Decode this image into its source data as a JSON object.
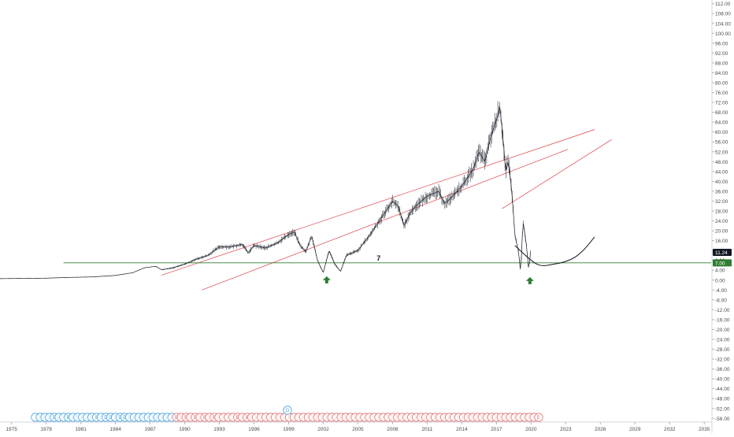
{
  "chart_data": {
    "type": "line",
    "title": "",
    "xlabel": "",
    "ylabel": "",
    "x_range": [
      1974.0,
      2035.6
    ],
    "ylim": [
      -57.5,
      113.5
    ],
    "y_ticks": [
      112,
      108,
      104,
      100,
      96,
      92,
      88,
      84,
      80,
      76,
      72,
      68,
      64,
      60,
      56,
      52,
      48,
      44,
      40,
      36,
      32,
      28,
      24,
      20,
      16,
      12,
      8,
      4,
      0,
      -4,
      -8,
      -12,
      -16,
      -20,
      -24,
      -28,
      -32,
      -36,
      -40,
      -44,
      -48,
      -52,
      -56
    ],
    "y_tick_labels": [
      "112.00",
      "108.00",
      "104.00",
      "100.00",
      "96.00",
      "92.00",
      "88.00",
      "84.00",
      "80.00",
      "76.00",
      "72.00",
      "68.00",
      "64.00",
      "60.00",
      "56.00",
      "52.00",
      "48.00",
      "44.00",
      "40.00",
      "36.00",
      "32.00",
      "28.00",
      "24.00",
      "20.00",
      "16.00",
      "12.00",
      "8.00",
      "4.00",
      "0.00",
      "-4.00",
      "-8.00",
      "-12.00",
      "-16.00",
      "-20.00",
      "-24.00",
      "-28.00",
      "-32.00",
      "-36.00",
      "-40.00",
      "-44.00",
      "-48.00",
      "-52.00",
      "-56.00"
    ],
    "x_ticks": [
      1975,
      1978,
      1981,
      1984,
      1987,
      1990,
      1993,
      1996,
      1999,
      2002,
      2005,
      2008,
      2011,
      2014,
      2017,
      2020,
      2023,
      2026,
      2029,
      2032,
      2035
    ],
    "x_tick_labels": [
      "1975",
      "1978",
      "1981",
      "1984",
      "1987",
      "1990",
      "1993",
      "1996",
      "1999",
      "2002",
      "2005",
      "2008",
      "2011",
      "2014",
      "2017",
      "2020",
      "2023",
      "2026",
      "2029",
      "2032",
      "2035"
    ],
    "series": [
      {
        "price": [
          [
            1974.0,
            0.6
          ],
          [
            1976.0,
            0.7
          ],
          [
            1978.0,
            0.8
          ],
          [
            1980.0,
            1.1
          ],
          [
            1982.0,
            1.3
          ],
          [
            1984.0,
            1.9
          ],
          [
            1985.5,
            3.0
          ],
          [
            1986.5,
            5.0
          ],
          [
            1987.5,
            5.6
          ],
          [
            1988.0,
            4.2
          ],
          [
            1989.0,
            5.0
          ],
          [
            1990.0,
            6.5
          ],
          [
            1991.0,
            8.5
          ],
          [
            1992.0,
            10.0
          ],
          [
            1993.0,
            13.5
          ],
          [
            1994.0,
            13.5
          ],
          [
            1995.0,
            14.5
          ],
          [
            1995.5,
            11.0
          ],
          [
            1996.0,
            14.0
          ],
          [
            1997.0,
            13.0
          ],
          [
            1998.0,
            15.0
          ],
          [
            1999.0,
            18.5
          ],
          [
            1999.5,
            19.5
          ],
          [
            2000.0,
            14.0
          ],
          [
            2000.5,
            11.5
          ],
          [
            2001.0,
            18.0
          ],
          [
            2001.5,
            8.0
          ],
          [
            2002.0,
            3.0
          ],
          [
            2002.5,
            12.0
          ],
          [
            2003.0,
            6.5
          ],
          [
            2003.5,
            3.5
          ],
          [
            2004.0,
            10.0
          ],
          [
            2005.0,
            12.0
          ],
          [
            2006.0,
            18.0
          ],
          [
            2007.0,
            25.0
          ],
          [
            2008.0,
            32.0
          ],
          [
            2008.5,
            30.0
          ],
          [
            2009.0,
            22.0
          ],
          [
            2009.5,
            27.0
          ],
          [
            2010.0,
            30.0
          ],
          [
            2011.0,
            34.0
          ],
          [
            2012.0,
            36.0
          ],
          [
            2012.5,
            31.0
          ],
          [
            2013.0,
            33.0
          ],
          [
            2014.0,
            38.0
          ],
          [
            2015.0,
            45.0
          ],
          [
            2015.5,
            52.0
          ],
          [
            2016.0,
            48.0
          ],
          [
            2016.5,
            58.0
          ],
          [
            2017.0,
            65.0
          ],
          [
            2017.3,
            70.0
          ],
          [
            2017.6,
            56.0
          ],
          [
            2017.8,
            44.0
          ],
          [
            2018.0,
            48.0
          ],
          [
            2018.2,
            42.0
          ],
          [
            2018.4,
            32.0
          ],
          [
            2018.6,
            18.0
          ],
          [
            2018.9,
            12.0
          ],
          [
            2019.1,
            3.0
          ],
          [
            2019.3,
            24.0
          ],
          [
            2019.6,
            14.0
          ],
          [
            2019.8,
            4.0
          ],
          [
            2019.95,
            11.24
          ]
        ],
        "swing_low_1": [
          2002.3,
          2.5
        ],
        "swing_low_2": [
          2019.9,
          2.2
        ]
      }
    ],
    "channel_upper": [
      [
        1988.0,
        2.0
      ],
      [
        2025.5,
        61.0
      ]
    ],
    "channel_lower": [
      [
        1991.5,
        -4.0
      ],
      [
        2023.2,
        53.0
      ]
    ],
    "trend_line": [
      [
        2017.5,
        29.0
      ],
      [
        2027.0,
        57.0
      ]
    ],
    "horizontal_level": 7,
    "horizontal_level_label": "7",
    "horizontal_line_range": [
      1979.5,
      2035.6
    ],
    "curve_bowl": [
      [
        2018.6,
        14.0
      ],
      [
        2020.5,
        6.5
      ],
      [
        2022.0,
        6.5
      ],
      [
        2023.5,
        8.5
      ],
      [
        2024.5,
        12.0
      ],
      [
        2025.5,
        17.5
      ]
    ],
    "price_tags": [
      {
        "value": 11.24,
        "label": "11.24"
      },
      {
        "value": 7.0,
        "label": "7.00"
      }
    ],
    "event_markers": {
      "markers": [
        {
          "label": "",
          "kind": "dividend"
        },
        {
          "label": "",
          "kind": "dividend"
        },
        {
          "label": "",
          "kind": "dividend"
        },
        {
          "label": "",
          "kind": "dividend"
        },
        {
          "label": "D",
          "kind": "dividend"
        },
        {
          "label": "",
          "kind": "dividend"
        },
        {
          "label": "",
          "kind": "dividend"
        },
        {
          "label": "E",
          "kind": "dividend"
        },
        {
          "label": "",
          "kind": "dividend"
        },
        {
          "label": "",
          "kind": "dividend"
        },
        {
          "label": "",
          "kind": "dividend"
        },
        {
          "label": "",
          "kind": "dividend"
        },
        {
          "label": "",
          "kind": "dividend"
        },
        {
          "label": "S",
          "kind": "dividend"
        },
        {
          "label": "",
          "kind": "dividend"
        },
        {
          "label": "D",
          "kind": "dividend"
        },
        {
          "label": "D",
          "kind": "dividend"
        },
        {
          "label": "",
          "kind": "dividend"
        },
        {
          "label": "D",
          "kind": "dividend"
        },
        {
          "label": "D",
          "kind": "dividend"
        },
        {
          "label": "",
          "kind": "dividend"
        },
        {
          "label": "",
          "kind": "dividend"
        },
        {
          "label": "",
          "kind": "dividend"
        },
        {
          "label": "",
          "kind": "dividend"
        },
        {
          "label": "",
          "kind": "dividend"
        },
        {
          "label": "",
          "kind": "dividend"
        },
        {
          "label": "",
          "kind": "dividend"
        },
        {
          "label": "",
          "kind": "dividend"
        },
        {
          "label": "",
          "kind": "dividend"
        },
        {
          "label": "",
          "kind": "dividend"
        },
        {
          "label": "E",
          "kind": "earnings"
        },
        {
          "label": "",
          "kind": "earnings"
        },
        {
          "label": "E",
          "kind": "earnings"
        },
        {
          "label": "",
          "kind": "earnings"
        },
        {
          "label": "E",
          "kind": "earnings"
        },
        {
          "label": "",
          "kind": "earnings"
        },
        {
          "label": "E",
          "kind": "earnings"
        },
        {
          "label": "",
          "kind": "earnings"
        },
        {
          "label": "E",
          "kind": "earnings"
        },
        {
          "label": "",
          "kind": "earnings"
        },
        {
          "label": "",
          "kind": "earnings"
        },
        {
          "label": "",
          "kind": "earnings"
        },
        {
          "label": "",
          "kind": "earnings"
        },
        {
          "label": "E",
          "kind": "earnings"
        },
        {
          "label": "",
          "kind": "earnings"
        },
        {
          "label": "E",
          "kind": "earnings"
        },
        {
          "label": "",
          "kind": "earnings"
        },
        {
          "label": "",
          "kind": "earnings"
        },
        {
          "label": "",
          "kind": "earnings"
        },
        {
          "label": "",
          "kind": "earnings"
        },
        {
          "label": "",
          "kind": "earnings"
        },
        {
          "label": "",
          "kind": "earnings"
        },
        {
          "label": "",
          "kind": "earnings"
        },
        {
          "label": "",
          "kind": "earnings"
        },
        {
          "label": "",
          "kind": "earnings"
        },
        {
          "label": "",
          "kind": "earnings"
        },
        {
          "label": "",
          "kind": "earnings"
        },
        {
          "label": "",
          "kind": "earnings"
        },
        {
          "label": "",
          "kind": "earnings"
        },
        {
          "label": "",
          "kind": "earnings"
        },
        {
          "label": "",
          "kind": "earnings"
        },
        {
          "label": "",
          "kind": "earnings"
        },
        {
          "label": "",
          "kind": "earnings"
        },
        {
          "label": "",
          "kind": "earnings"
        },
        {
          "label": "",
          "kind": "earnings"
        },
        {
          "label": "",
          "kind": "earnings"
        },
        {
          "label": "",
          "kind": "earnings"
        },
        {
          "label": "",
          "kind": "earnings"
        },
        {
          "label": "",
          "kind": "earnings"
        },
        {
          "label": "",
          "kind": "earnings"
        },
        {
          "label": "",
          "kind": "earnings"
        },
        {
          "label": "",
          "kind": "earnings"
        },
        {
          "label": "",
          "kind": "earnings"
        },
        {
          "label": "",
          "kind": "earnings"
        },
        {
          "label": "",
          "kind": "earnings"
        },
        {
          "label": "",
          "kind": "earnings"
        },
        {
          "label": "",
          "kind": "earnings"
        },
        {
          "label": "",
          "kind": "earnings"
        },
        {
          "label": "",
          "kind": "earnings"
        },
        {
          "label": "",
          "kind": "earnings"
        },
        {
          "label": "",
          "kind": "earnings"
        },
        {
          "label": "",
          "kind": "earnings"
        },
        {
          "label": "",
          "kind": "earnings"
        },
        {
          "label": "",
          "kind": "earnings"
        },
        {
          "label": "",
          "kind": "earnings"
        },
        {
          "label": "",
          "kind": "earnings"
        },
        {
          "label": "",
          "kind": "earnings"
        },
        {
          "label": "",
          "kind": "earnings"
        },
        {
          "label": "",
          "kind": "earnings"
        },
        {
          "label": "",
          "kind": "earnings"
        },
        {
          "label": "",
          "kind": "earnings"
        },
        {
          "label": "",
          "kind": "earnings"
        },
        {
          "label": "",
          "kind": "earnings"
        },
        {
          "label": "",
          "kind": "earnings"
        },
        {
          "label": "",
          "kind": "earnings"
        },
        {
          "label": "",
          "kind": "earnings"
        },
        {
          "label": "",
          "kind": "earnings"
        },
        {
          "label": "",
          "kind": "earnings"
        },
        {
          "label": "",
          "kind": "earnings"
        },
        {
          "label": "",
          "kind": "earnings"
        },
        {
          "label": "",
          "kind": "earnings"
        },
        {
          "label": "",
          "kind": "earnings"
        },
        {
          "label": "",
          "kind": "earnings"
        },
        {
          "label": "",
          "kind": "earnings"
        },
        {
          "label": "",
          "kind": "earnings"
        },
        {
          "label": "",
          "kind": "earnings"
        },
        {
          "label": "",
          "kind": "earnings"
        },
        {
          "label": "E",
          "kind": "earnings"
        }
      ],
      "raised_marker_label": "D"
    },
    "colors": {
      "background": "#ffffff",
      "price": "#131722",
      "channel": "#e15a63",
      "level": "#2e7d32",
      "curve": "#131722",
      "arrow": "#2e7d32",
      "axis_text": "#4a4a4a",
      "tag_price_bg": "#131722",
      "tag_level_bg": "#2e7d32",
      "dividend_marker": "#4aa3df",
      "earnings_marker": "#e57373"
    },
    "grid": false,
    "y_scale": "linear",
    "legend": "none"
  }
}
